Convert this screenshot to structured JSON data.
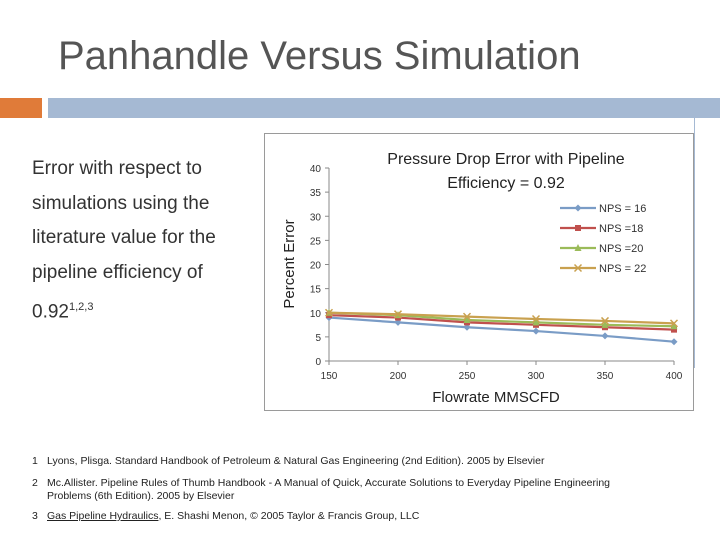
{
  "slide": {
    "title": "Panhandle Versus Simulation",
    "bullet_text": "Error with respect to simulations using the literature value for the pipeline efficiency of 0.92",
    "bullet_superscript": "1,2,3",
    "accent_colors": {
      "orange": "#E07B39",
      "blue": "#A5B9D3"
    }
  },
  "chart_data": {
    "type": "line",
    "title_line1": "Pressure Drop Error with Pipeline",
    "title_line2": "Efficiency = 0.92",
    "xlabel": "Flowrate MMSCFD",
    "ylabel": "Percent Error",
    "xlim": [
      150,
      400
    ],
    "ylim": [
      0,
      40
    ],
    "x_ticks": [
      150,
      200,
      250,
      300,
      350,
      400
    ],
    "y_ticks": [
      0,
      5,
      10,
      15,
      20,
      25,
      30,
      35,
      40
    ],
    "x": [
      150,
      200,
      250,
      300,
      350,
      400
    ],
    "series": [
      {
        "name": "NPS = 16",
        "color": "#7A9CC6",
        "marker": "diamond",
        "values": [
          9,
          8,
          7,
          6.2,
          5.2,
          4
        ]
      },
      {
        "name": "NPS =18",
        "color": "#C0504D",
        "marker": "square",
        "values": [
          9.5,
          9,
          8,
          7.5,
          7,
          6.5
        ]
      },
      {
        "name": "NPS =20",
        "color": "#9BBB59",
        "marker": "triangle",
        "values": [
          10,
          9.5,
          8.5,
          8,
          7.5,
          7.2
        ]
      },
      {
        "name": "NPS = 22",
        "color": "#C9A14F",
        "marker": "x",
        "values": [
          10,
          9.7,
          9.2,
          8.7,
          8.3,
          7.8
        ]
      }
    ]
  },
  "footnotes": [
    {
      "num": "1",
      "lines": [
        "Lyons, Plisga.  Standard Handbook of Petroleum & Natural Gas Engineering (2nd Edition).  2005 by Elsevier"
      ]
    },
    {
      "num": "2",
      "lines": [
        "Mc.Allister.  Pipeline Rules of Thumb Handbook - A Manual of Quick, Accurate Solutions to Everyday Pipeline Engineering",
        "Problems (6th Edition).  2005 by Elsevier"
      ]
    },
    {
      "num": "3",
      "underlined": "Gas Pipeline Hydraulics",
      "rest": ", E. Shashi Menon, © 2005 Taylor & Francis Group, LLC"
    }
  ]
}
